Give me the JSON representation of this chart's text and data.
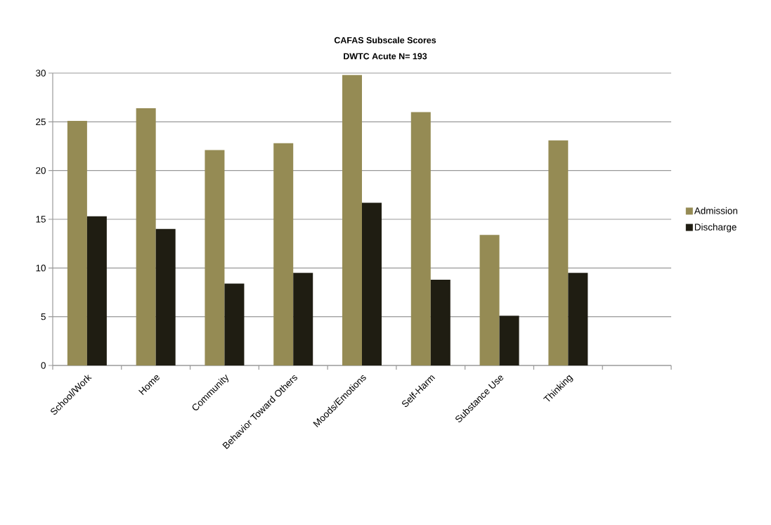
{
  "chart_data": {
    "type": "bar",
    "title": "CAFAS Subscale Scores",
    "subtitle": "DWTC Acute    N= 193",
    "categories": [
      "School/Work",
      "Home",
      "Community",
      "Behavior Toward Others",
      "Moods/Emotions",
      "Self-Harm",
      "Substance Use",
      "Thinking",
      null
    ],
    "series": [
      {
        "name": "Admission",
        "color": "#958b54",
        "values": [
          25.1,
          26.4,
          22.1,
          22.8,
          29.8,
          26.0,
          13.4,
          23.1,
          null
        ]
      },
      {
        "name": "Discharge",
        "color": "#1f1d12",
        "values": [
          15.3,
          14.0,
          8.4,
          9.5,
          16.7,
          8.8,
          5.1,
          9.5,
          null
        ]
      }
    ],
    "ylim": [
      0,
      30
    ],
    "yticks": [
      0,
      5,
      10,
      15,
      20,
      25,
      30
    ],
    "grid": "y",
    "legend": "right"
  }
}
